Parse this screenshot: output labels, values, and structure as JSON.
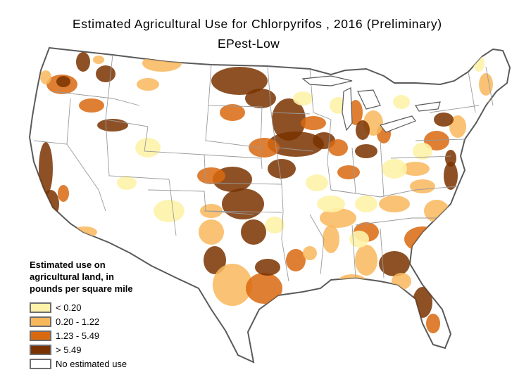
{
  "title": "Estimated Agricultural Use for Chlorpyrifos , 2016 (Preliminary)",
  "subtitle": "EPest-Low",
  "legend": {
    "title_lines": [
      "Estimated use on",
      "agricultural land, in",
      "pounds per square mile"
    ],
    "items": [
      {
        "label": "< 0.20",
        "color": "#fef3a8"
      },
      {
        "label": "0.20 - 1.22",
        "color": "#f9b75c"
      },
      {
        "label": "1.23 - 5.49",
        "color": "#d9690f"
      },
      {
        "label": "> 5.49",
        "color": "#7a3300"
      },
      {
        "label": "No estimated use",
        "color": "#ffffff"
      }
    ]
  },
  "colors": {
    "state_border": "#9a9a9a",
    "coast": "#5a5a5a",
    "low": "#fef3a8",
    "low_mid": "#f9b75c",
    "high_mid": "#d9690f",
    "high": "#7a3300"
  }
}
